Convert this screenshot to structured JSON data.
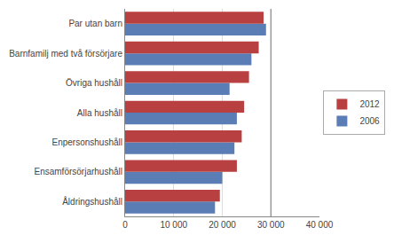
{
  "chart_data": {
    "type": "bar",
    "orientation": "horizontal",
    "categories": [
      "Åldringshushåll",
      "Ensamförsörjarhushåll",
      "Enpersonshushåll",
      "Alla hushåll",
      "Övriga hushåll",
      "Barnfamilj med två försörjare",
      "Par utan barn"
    ],
    "series": [
      {
        "name": "2012",
        "color": "#b94040",
        "values": [
          19500,
          23000,
          24000,
          24500,
          25500,
          27500,
          28500
        ]
      },
      {
        "name": "2006",
        "color": "#5b7db5",
        "values": [
          18500,
          20000,
          22500,
          23000,
          21500,
          26000,
          29000
        ]
      }
    ],
    "xlim": [
      0,
      40000
    ],
    "xticks": [
      0,
      {
        "value": 10000,
        "label": "10 000"
      },
      {
        "value": 20000,
        "label": "20 000"
      },
      {
        "value": 30000,
        "label": "30 000"
      },
      {
        "value": 40000,
        "label": "40 000"
      }
    ],
    "vline": 30000,
    "grid": true,
    "legend": "right"
  }
}
